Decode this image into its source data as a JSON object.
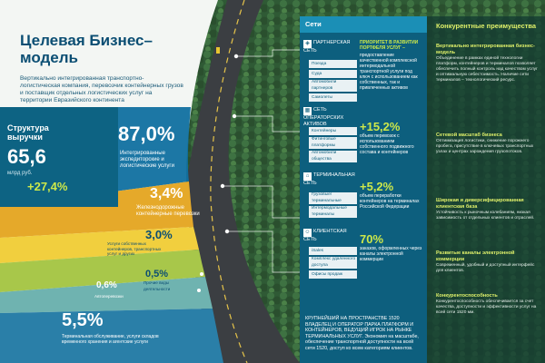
{
  "title": "Целевая Бизнес–модель",
  "subtitle": "Вертикально интегрированная транспортно-логистическая компания, перевозчик контейнерных грузов и поставщик отдельных логистических услуг на территории Евразийского континента",
  "revenue": {
    "heading": "Структура выручки",
    "value": "65,6",
    "unit": "млрд руб.",
    "growth": "+27,4%"
  },
  "segments": [
    {
      "pct": "87,0%",
      "caption": "Интегрированные экспедиторские и логистические услуги"
    },
    {
      "pct": "3,4%",
      "caption": "Железнодорожные контейнерные перевозки"
    },
    {
      "pct": "3,0%",
      "caption": "Услуги собственных контейнеров, транспортных услуг и других"
    },
    {
      "pct": "0,5%",
      "caption": "Прочие виды деятельности"
    },
    {
      "pct": "0,6%",
      "caption": "Автоперевозки"
    },
    {
      "pct": "5,5%",
      "caption": "Терминальная обслуживание, услуги складов временного хранения и агентские услуги"
    }
  ],
  "networks": {
    "header": "Сети",
    "partner": {
      "tag": "ПАРТНЕРСКАЯ СЕТЬ",
      "items": [
        "Поезда",
        "Суда",
        "Автомобили партнеров",
        "Самолеты"
      ],
      "title": "ПРИОРИТЕТ В РАЗВИТИИ ПОРТФЕЛЯ УСЛУГ –",
      "text": "предоставление качественной комплексной интермодальной транспортной услуги под ключ с использованием как собственных, так и привлеченных активов"
    },
    "operator": {
      "tag": "СЕТЬ ОПЕРАТОРСКИХ АКТИВОВ",
      "items": [
        "Контейнеры",
        "Фитинговые платформы",
        "Автомобили общества"
      ],
      "pct": "+15,2%",
      "text": "объем перевозок с использованием собственного подвижного состава и контейнеров"
    },
    "terminal": {
      "tag": "ТЕРМИНАЛЬНАЯ СЕТЬ",
      "items": [
        "Грузовые/терминальные мощности",
        "Интермодальные терминалы"
      ],
      "pct": "+5,2%",
      "text": "объем переработки контейнеров на терминалах Российской Федерации"
    },
    "client": {
      "tag": "КЛИЕНТСКАЯ СЕТЬ",
      "items": [
        "iSales",
        "Комплекс удаленного доступа",
        "Офисы продаж"
      ],
      "pct": "70%",
      "text": "заказов, оформленных через каналы электронной коммерции"
    },
    "bottom": "КРУПНЕЙШИЙ НА ПРОСТРАНСТВЕ 1520 ВЛАДЕЛЕЦ И ОПЕРАТОР ПАРКА ПЛАТФОРМ И КОНТЕЙНЕРОВ, ВЕДУЩИЙ ИГРОК НА РЫНКЕ ТЕРМИНАЛЬНЫХ УСЛУГ. Экономия на масштабе, обеспечение транспортной доступности на всей сети 1520, доступ ко всем категориям клиентов."
  },
  "advantages": {
    "header": "Конкурентные преимущества",
    "items": [
      {
        "title": "Вертикально интегрированная бизнес-модель",
        "text": "Объединение в рамках единой технологии платформ, контейнеров и терминалов позволяет обеспечить полный контроль над качеством услуг и оптимальную себестоимость. Наличие сети терминалов – технологический ресурс."
      },
      {
        "title": "Сетевой масштаб бизнеса",
        "text": "Оптимизация логистики, снижение порожнего пробега, присутствие в ключевых транспортных узлах и центрах зарождения грузопотоков."
      },
      {
        "title": "Широкая и диверсифицированная клиентская база",
        "text": "Устойчивость к рыночным колебаниям, низкая зависимость от отдельных клиентов и отраслей."
      },
      {
        "title": "Развитые каналы электронной коммерции",
        "text": "Современный, удобный и доступный интерфейс для клиентов."
      },
      {
        "title": "Конкурентоспособность",
        "text": "Конкурентоспособность обеспечивается за счет качества, доступности и эффективности услуг на всей сети 1520 мм."
      }
    ]
  }
}
